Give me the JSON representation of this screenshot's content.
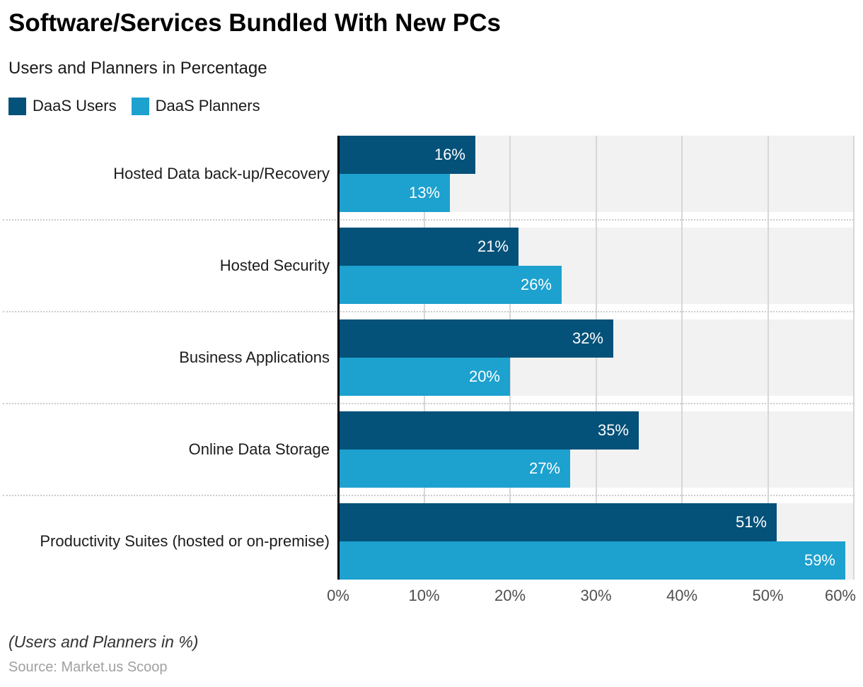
{
  "title": "Software/Services Bundled With New PCs",
  "subtitle": "Users and Planners in Percentage",
  "legend": {
    "items": [
      {
        "label": "DaaS Users",
        "color": "#045179"
      },
      {
        "label": "DaaS Planners",
        "color": "#1da1cf"
      }
    ]
  },
  "footer": {
    "note": "(Users and Planners in %)",
    "source": "Source: Market.us Scoop"
  },
  "chart_data": {
    "type": "bar",
    "orientation": "horizontal",
    "title": "Software/Services Bundled With New PCs",
    "subtitle": "Users and Planners in Percentage",
    "categories": [
      "Hosted Data back-up/Recovery",
      "Hosted Security",
      "Business Applications",
      "Online Data Storage",
      "Productivity Suites (hosted or on-premise)"
    ],
    "series": [
      {
        "name": "DaaS Users",
        "color": "#045179",
        "values": [
          16,
          21,
          32,
          35,
          51
        ]
      },
      {
        "name": "DaaS Planners",
        "color": "#1da1cf",
        "values": [
          13,
          26,
          20,
          27,
          59
        ]
      }
    ],
    "value_suffix": "%",
    "xlabel": "",
    "ylabel": "",
    "xlim": [
      0,
      60
    ],
    "xticks": [
      "0%",
      "10%",
      "20%",
      "30%",
      "40%",
      "50%",
      "60%"
    ],
    "grid": true,
    "legend_position": "top",
    "styles": {
      "band_color": "#f2f2f2",
      "gridline_color": "#d7d7d7",
      "axis_color": "#000000",
      "separator_color": "#cbcbcb",
      "value_label_color": "#ffffff"
    }
  }
}
